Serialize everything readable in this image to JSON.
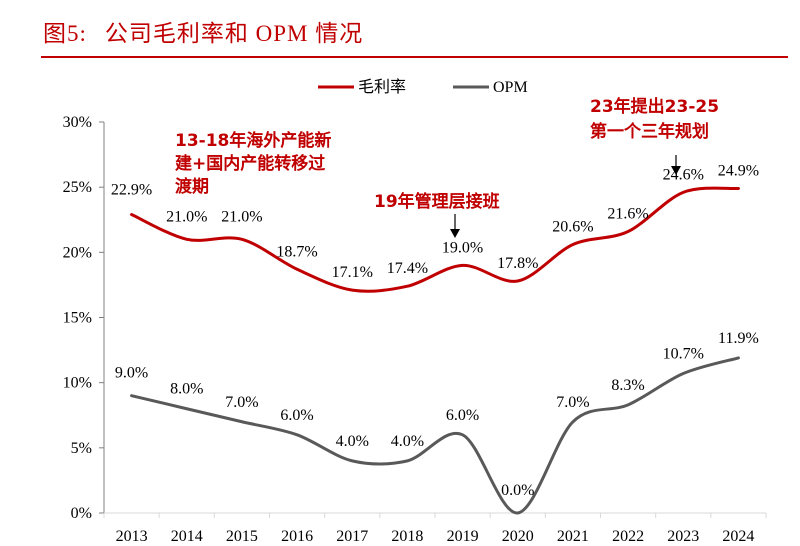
{
  "figure": {
    "number_label": "图5:",
    "title": "公司毛利率和 OPM 情况",
    "rule_color": "#c00000"
  },
  "chart_data": {
    "type": "line",
    "title": "公司毛利率和 OPM 情况",
    "xlabel": "",
    "ylabel": "",
    "categories": [
      "2013",
      "2014",
      "2015",
      "2016",
      "2017",
      "2018",
      "2019",
      "2020",
      "2021",
      "2022",
      "2023",
      "2024"
    ],
    "ylim": [
      0,
      30
    ],
    "yticks": [
      0,
      5,
      10,
      15,
      20,
      25,
      30
    ],
    "ytick_labels": [
      "0%",
      "5%",
      "10%",
      "15%",
      "20%",
      "25%",
      "30%"
    ],
    "grid": false,
    "legend_position": "top-center",
    "smooth": true,
    "series": [
      {
        "name": "毛利率",
        "color": "#c00000",
        "values": [
          22.9,
          21.0,
          21.0,
          18.7,
          17.1,
          17.4,
          19.0,
          17.8,
          20.6,
          21.6,
          24.6,
          24.9
        ],
        "labels": [
          "22.9%",
          "21.0%",
          "21.0%",
          "18.7%",
          "17.1%",
          "17.4%",
          "19.0%",
          "17.8%",
          "20.6%",
          "21.6%",
          "24.6%",
          "24.9%"
        ]
      },
      {
        "name": "OPM",
        "color": "#595959",
        "values": [
          9.0,
          8.0,
          7.0,
          6.0,
          4.0,
          4.0,
          6.0,
          0.0,
          7.0,
          8.3,
          10.7,
          11.9
        ],
        "labels": [
          "9.0%",
          "8.0%",
          "7.0%",
          "6.0%",
          "4.0%",
          "4.0%",
          "6.0%",
          "0.0%",
          "7.0%",
          "8.3%",
          "10.7%",
          "11.9%"
        ]
      }
    ],
    "annotations": [
      {
        "lines": [
          "13-18年海外产能新",
          "建+国内产能转移过",
          "渡期"
        ],
        "color": "#c00000"
      },
      {
        "lines": [
          "19年管理层接班"
        ],
        "color": "#c00000",
        "arrow_to": "2019"
      },
      {
        "lines": [
          "23年提出23-25",
          "第一个三年规划"
        ],
        "color": "#c00000",
        "arrow_to": "2023"
      }
    ]
  }
}
